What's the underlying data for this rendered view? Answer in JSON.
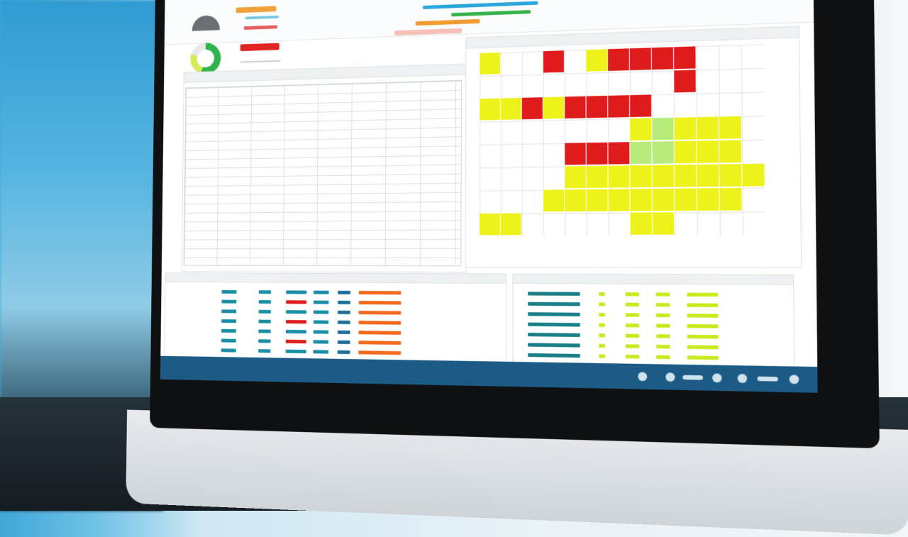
{
  "colors": {
    "red": "#e01b1b",
    "yellow": "#eef21b",
    "green_cell": "#b7ec7a",
    "teal": "#1a8fa6",
    "orange": "#f36a1c",
    "lime": "#c9ea1d"
  },
  "heatmap": {
    "title": "",
    "row_labels": [],
    "col_labels": [],
    "cells": [
      {
        "r": 0,
        "c": 0,
        "v": "yellow"
      },
      {
        "r": 0,
        "c": 3,
        "v": "red"
      },
      {
        "r": 0,
        "c": 5,
        "v": "yellow"
      },
      {
        "r": 0,
        "c": 6,
        "v": "red"
      },
      {
        "r": 0,
        "c": 7,
        "v": "red"
      },
      {
        "r": 0,
        "c": 8,
        "v": "red"
      },
      {
        "r": 0,
        "c": 9,
        "v": "red"
      },
      {
        "r": 1,
        "c": 9,
        "v": "red"
      },
      {
        "r": 2,
        "c": 0,
        "v": "yellow"
      },
      {
        "r": 2,
        "c": 1,
        "v": "yellow"
      },
      {
        "r": 2,
        "c": 2,
        "v": "red"
      },
      {
        "r": 2,
        "c": 3,
        "v": "yellow"
      },
      {
        "r": 2,
        "c": 4,
        "v": "red"
      },
      {
        "r": 2,
        "c": 5,
        "v": "red"
      },
      {
        "r": 2,
        "c": 6,
        "v": "red"
      },
      {
        "r": 2,
        "c": 7,
        "v": "red"
      },
      {
        "r": 3,
        "c": 7,
        "v": "yellow"
      },
      {
        "r": 3,
        "c": 8,
        "v": "green"
      },
      {
        "r": 3,
        "c": 9,
        "v": "yellow"
      },
      {
        "r": 3,
        "c": 10,
        "v": "yellow"
      },
      {
        "r": 3,
        "c": 11,
        "v": "yellow"
      },
      {
        "r": 4,
        "c": 4,
        "v": "red"
      },
      {
        "r": 4,
        "c": 5,
        "v": "red"
      },
      {
        "r": 4,
        "c": 6,
        "v": "red"
      },
      {
        "r": 4,
        "c": 7,
        "v": "green"
      },
      {
        "r": 4,
        "c": 8,
        "v": "green"
      },
      {
        "r": 4,
        "c": 9,
        "v": "yellow"
      },
      {
        "r": 4,
        "c": 10,
        "v": "yellow"
      },
      {
        "r": 4,
        "c": 11,
        "v": "yellow"
      },
      {
        "r": 5,
        "c": 4,
        "v": "yellow"
      },
      {
        "r": 5,
        "c": 5,
        "v": "yellow"
      },
      {
        "r": 5,
        "c": 6,
        "v": "yellow"
      },
      {
        "r": 5,
        "c": 7,
        "v": "yellow"
      },
      {
        "r": 5,
        "c": 8,
        "v": "yellow"
      },
      {
        "r": 5,
        "c": 9,
        "v": "yellow"
      },
      {
        "r": 5,
        "c": 10,
        "v": "yellow"
      },
      {
        "r": 5,
        "c": 11,
        "v": "yellow"
      },
      {
        "r": 5,
        "c": 12,
        "v": "yellow"
      },
      {
        "r": 6,
        "c": 3,
        "v": "yellow"
      },
      {
        "r": 6,
        "c": 4,
        "v": "yellow"
      },
      {
        "r": 6,
        "c": 5,
        "v": "yellow"
      },
      {
        "r": 6,
        "c": 6,
        "v": "yellow"
      },
      {
        "r": 6,
        "c": 7,
        "v": "yellow"
      },
      {
        "r": 6,
        "c": 8,
        "v": "yellow"
      },
      {
        "r": 6,
        "c": 9,
        "v": "yellow"
      },
      {
        "r": 6,
        "c": 10,
        "v": "yellow"
      },
      {
        "r": 6,
        "c": 11,
        "v": "yellow"
      },
      {
        "r": 7,
        "c": 0,
        "v": "yellow"
      },
      {
        "r": 7,
        "c": 1,
        "v": "yellow"
      },
      {
        "r": 7,
        "c": 7,
        "v": "yellow"
      },
      {
        "r": 7,
        "c": 8,
        "v": "yellow"
      }
    ]
  },
  "left_list": {
    "values": [
      "",
      "",
      "",
      "",
      "",
      "",
      ""
    ]
  },
  "right_list": {
    "values": [
      "",
      "",
      "",
      "",
      "",
      "",
      ""
    ]
  }
}
